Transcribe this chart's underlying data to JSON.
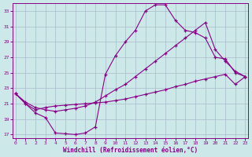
{
  "xlabel": "Windchill (Refroidissement éolien,°C)",
  "bg_color": "#cce8e8",
  "grid_color": "#aabbcc",
  "line_color": "#880088",
  "xlim_min": -0.3,
  "xlim_max": 23.3,
  "ylim_min": 16.5,
  "ylim_max": 34.0,
  "xticks": [
    0,
    1,
    2,
    3,
    4,
    5,
    6,
    7,
    8,
    9,
    10,
    11,
    12,
    13,
    14,
    15,
    16,
    17,
    18,
    19,
    20,
    21,
    22,
    23
  ],
  "yticks": [
    17,
    19,
    21,
    23,
    25,
    27,
    29,
    31,
    33
  ],
  "line1_x": [
    0,
    1,
    2,
    3,
    4,
    5,
    6,
    7,
    8,
    9,
    10,
    11,
    12,
    13,
    14,
    15,
    16,
    17,
    18,
    19,
    20,
    21,
    22,
    23
  ],
  "line1_y": [
    22.3,
    21.0,
    19.8,
    19.2,
    17.2,
    17.1,
    17.0,
    17.2,
    18.0,
    24.8,
    27.2,
    29.0,
    30.5,
    33.0,
    33.8,
    33.8,
    31.8,
    30.5,
    30.2,
    29.5,
    27.0,
    26.8,
    25.0,
    24.5
  ],
  "line2_x": [
    0,
    1,
    2,
    3,
    4,
    5,
    6,
    7,
    8,
    9,
    10,
    11,
    12,
    13,
    14,
    15,
    16,
    17,
    18,
    19,
    20,
    21,
    22,
    23
  ],
  "line2_y": [
    22.3,
    21.2,
    20.5,
    20.2,
    20.0,
    20.2,
    20.4,
    20.7,
    21.2,
    22.0,
    22.8,
    23.5,
    24.5,
    25.5,
    26.5,
    27.5,
    28.5,
    29.5,
    30.5,
    31.5,
    28.0,
    26.5,
    25.2,
    24.5
  ],
  "line3_x": [
    0,
    1,
    2,
    3,
    4,
    5,
    6,
    7,
    8,
    9,
    10,
    11,
    12,
    13,
    14,
    15,
    16,
    17,
    18,
    19,
    20,
    21,
    22,
    23
  ],
  "line3_y": [
    22.3,
    21.0,
    20.2,
    20.5,
    20.7,
    20.8,
    20.9,
    21.0,
    21.1,
    21.2,
    21.4,
    21.6,
    21.9,
    22.2,
    22.5,
    22.8,
    23.2,
    23.5,
    23.9,
    24.2,
    24.5,
    24.8,
    23.5,
    24.5
  ]
}
